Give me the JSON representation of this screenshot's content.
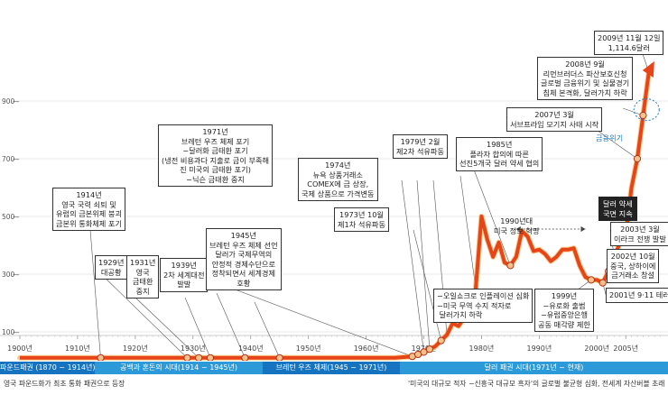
{
  "chart_data": {
    "type": "line",
    "x": [
      1900,
      1905,
      1910,
      1914,
      1920,
      1929,
      1931,
      1933,
      1939,
      1945,
      1950,
      1955,
      1960,
      1965,
      1968,
      1969,
      1970,
      1971,
      1972,
      1973,
      1974,
      1975,
      1976,
      1977,
      1978,
      1979,
      1980,
      1981,
      1982,
      1983,
      1984,
      1985,
      1986,
      1987,
      1988,
      1989,
      1990,
      1991,
      1992,
      1993,
      1994,
      1995,
      1996,
      1997,
      1998,
      1999,
      2000,
      2001,
      2002,
      2003,
      2004,
      2005,
      2006,
      2007,
      2008,
      2009
    ],
    "y": [
      10,
      10,
      10,
      10,
      10,
      10,
      10,
      10,
      10,
      10,
      10,
      10,
      10,
      10,
      15,
      22,
      30,
      40,
      50,
      70,
      90,
      130,
      120,
      150,
      180,
      250,
      500,
      420,
      360,
      410,
      340,
      330,
      360,
      450,
      430,
      380,
      385,
      370,
      345,
      360,
      385,
      385,
      390,
      330,
      290,
      280,
      280,
      270,
      310,
      360,
      410,
      440,
      600,
      700,
      850,
      1000
    ],
    "xlim": [
      1900,
      2012
    ],
    "ylim": [
      0,
      1250
    ],
    "xticks": [
      "1900년",
      "1910년",
      "1920년",
      "1930년",
      "1940년",
      "1950년",
      "1960년",
      "1970년",
      "1980년",
      "1990년",
      "2000년",
      "2005년"
    ],
    "yticks": [
      "100",
      "300",
      "500",
      "700",
      "900"
    ],
    "grid": true,
    "color": "#e8441a"
  },
  "annotations": {
    "a1914": "1914년\n영국 국력 쇠퇴 및\n유럽의 금본위제 붕괴\n금본위 통화체제 포기",
    "a1929": "1929년\n대공황",
    "a1931": "1931년\n영국\n금태환\n중지",
    "a1939": "1939년\n2차 세계대전\n발발",
    "a1945": "1945년\n브레턴 우즈 체제 선언\n달러가 국제무역의\n안정적 경제수단으로\n정착되면서 세계경제\n호황",
    "a1971": "1971년\n브레턴 우즈 체제 포기\n−달러화 금태환 포기\n(냉전 비용과다 지출로 금이 부족해\n진 미국의 금태환 포기)\n−닉슨 금태환 중지",
    "a1974": "1974년\n뉴욕 상품거래소\nCOMEX에 금 상장,\n국제 상품으로 가격변동",
    "a1973": "1973년 10월\n제1차 석유파동",
    "a1979": "1979년 2월\n제2차 석유파동",
    "a1985": "1985년\n플라자 합의에 따른\n선진5개국 달러 약세 협의",
    "a1990s": "1990년대\n미국 정보 혁명",
    "a1980s": "−오일쇼크로 인플레이션 심화\n−미국 무역 수지 적자로\n 달러가치 하락",
    "a1999": "1999년\n−유로화 출범\n−유럽중앙은행\n공동 매각량 제한",
    "a2001": "2001년 9·11 테러",
    "a2002": "2002년 10월\n중국, 상하이에\n금거래소 창설",
    "a2003": "2003년 3월\n이라크 전쟁 발발",
    "a2007": "2007년 3월\n서브프라임 모기지 사태 시작",
    "a2008": "2008년 9월\n리먼브러더스 파산보호신청\n글로벌 금융위기 및 실물경기\n침체 본격화, 달러가치 하락",
    "a2009": "2009년 11월 12일\n1,114.6달러",
    "crisis": "금융위기",
    "weak": "달러 약세\n국면 지속"
  },
  "eras": [
    {
      "label": "파운드패권 (1870 ~ 1914년)",
      "color": "#1673bf"
    },
    {
      "label": "공백과 혼돈의 시대(1914 ~ 1945년)",
      "color": "#2c9ad8"
    },
    {
      "label": "브레턴 우즈 체제(1945 ~ 1971년)",
      "color": "#1673bf"
    },
    {
      "label": "달러 패권 시대(1971년 ~ 현재)",
      "color": "#2c9ad8"
    }
  ],
  "footer": {
    "left": "영국 파운드화가 최초 통화 패권으로 등장",
    "right": "'미국의 대규모 적자 −신흥국 대규모 흑자'의 글로벌 불균형 심화, 전세계 자산버블 초래"
  }
}
